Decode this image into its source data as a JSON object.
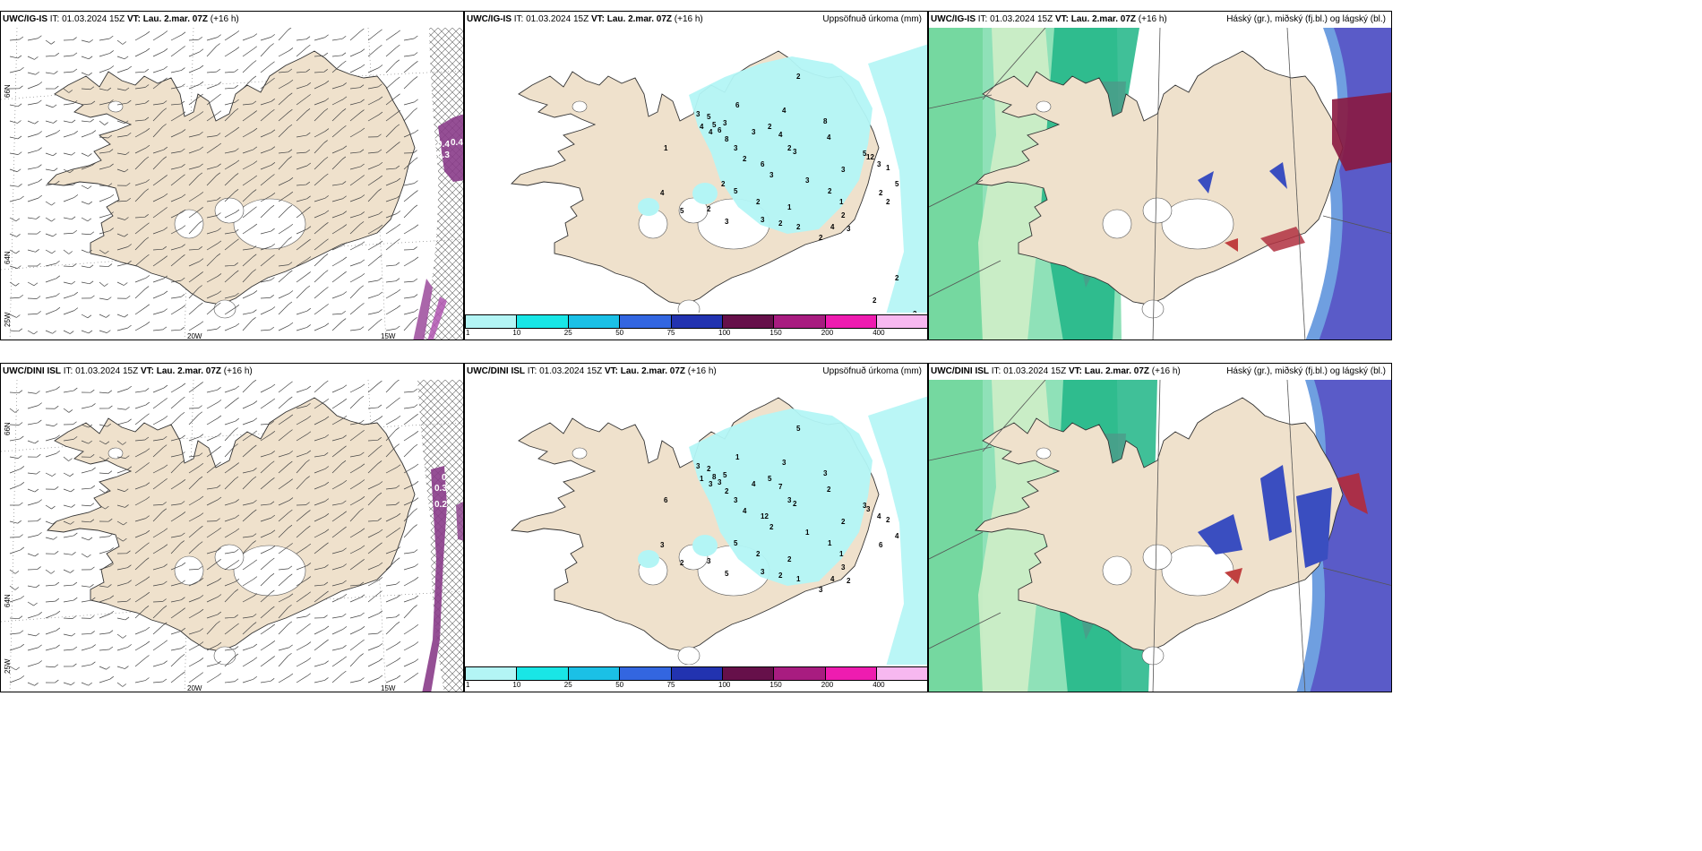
{
  "panels": {
    "p1": {
      "model": "UWC/IG-IS",
      "it": "IT: 01.03.2024 15Z",
      "vt": "VT: Lau. 2.mar. 07Z",
      "lead": "(+16 h)",
      "right": ""
    },
    "p2": {
      "model": "UWC/IG-IS",
      "it": "IT: 01.03.2024 15Z",
      "vt": "VT: Lau. 2.mar. 07Z",
      "lead": "(+16 h)",
      "right": "Uppsöfnuð úrkoma (mm)"
    },
    "p3": {
      "model": "UWC/IG-IS",
      "it": "IT: 01.03.2024 15Z",
      "vt": "VT: Lau. 2.mar. 07Z",
      "lead": "(+16 h)",
      "right": "Háský (gr.), miðský (fj.bl.) og lágský (bl.)"
    },
    "p4": {
      "model": "UWC/DINI ISL",
      "it": "IT: 01.03.2024 15Z",
      "vt": "VT: Lau. 2.mar. 07Z",
      "lead": "(+16 h)",
      "right": ""
    },
    "p5": {
      "model": "UWC/DINI ISL",
      "it": "IT: 01.03.2024 15Z",
      "vt": "VT: Lau. 2.mar. 07Z",
      "lead": "(+16 h)",
      "right": "Uppsöfnuð úrkoma (mm)"
    },
    "p6": {
      "model": "UWC/DINI ISL",
      "it": "IT: 01.03.2024 15Z",
      "vt": "VT: Lau. 2.mar. 07Z",
      "lead": "(+16 h)",
      "right": "Háský (gr.), miðský (fj.bl.) og lágský (bl.)"
    }
  },
  "axes": {
    "lon_20w": "20W",
    "lon_15w": "15W",
    "lat_66n": "66N",
    "lat_64n": "64N",
    "lon_25w": "25W"
  },
  "colorbar": {
    "labels": [
      "1",
      "10",
      "25",
      "50",
      "75",
      "100",
      "150",
      "200",
      "400"
    ],
    "colors": [
      "#b3f5f5",
      "#19e6e6",
      "#1bc0e6",
      "#3366e0",
      "#2233b0",
      "#66104a",
      "#a81c80",
      "#ee1cb0",
      "#f7b8f0"
    ]
  },
  "contour_values": {
    "p1": [
      "0.4",
      "0.4",
      "0.3"
    ],
    "p4": [
      "0.",
      "0.3",
      "0.2"
    ]
  },
  "precip_values": {
    "p2": [
      "2",
      "6",
      "4",
      "8",
      "1",
      "3",
      "5",
      "5",
      "6",
      "3",
      "4",
      "4",
      "8",
      "3",
      "2",
      "4",
      "3",
      "2",
      "2",
      "4",
      "6",
      "3",
      "5",
      "3",
      "3",
      "1",
      "12",
      "1",
      "2",
      "5",
      "3",
      "3",
      "5",
      "2",
      "1",
      "2",
      "2",
      "4",
      "5",
      "2",
      "3",
      "3",
      "2",
      "2",
      "2",
      "4",
      "3",
      "2",
      "2",
      "2",
      "2",
      "2"
    ],
    "p5": [
      "5",
      "1",
      "3",
      "3",
      "6",
      "3",
      "2",
      "8",
      "3",
      "5",
      "1",
      "3",
      "2",
      "4",
      "5",
      "7",
      "3",
      "4",
      "3",
      "2",
      "12",
      "2",
      "3",
      "2",
      "4",
      "2",
      "3",
      "1",
      "6",
      "4",
      "2",
      "1",
      "5",
      "2",
      "2",
      "1",
      "3",
      "3",
      "2",
      "3",
      "5",
      "3",
      "2",
      "1",
      "3",
      "4",
      "2"
    ]
  },
  "colors": {
    "land": "#efe1cc",
    "precip_light": "#b3f5f5",
    "cloud_high_green": "#1fc98e",
    "cloud_mid_blue": "#5a5bc8",
    "cloud_low_red": "#8a1840"
  }
}
